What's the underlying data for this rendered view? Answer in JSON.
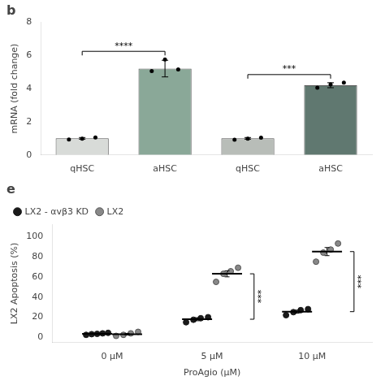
{
  "chart_data": [
    {
      "type": "bar",
      "title": "b",
      "ylabel": "mRNA (fold change)",
      "categories": [
        "qHSC",
        "aHSC",
        "qHSC",
        "aHSC"
      ],
      "values": [
        1.0,
        5.2,
        1.0,
        4.2
      ],
      "errors": [
        0.05,
        0.5,
        0.05,
        0.15
      ],
      "colors": [
        "#d8dbd8",
        "#8aA898",
        "#b8bdb8",
        "#607870"
      ],
      "points": [
        [
          0.93,
          0.98,
          1.05
        ],
        [
          5.05,
          5.75,
          5.15
        ],
        [
          0.92,
          0.98,
          1.04
        ],
        [
          4.05,
          4.25,
          4.35
        ]
      ],
      "ylim": [
        0,
        8
      ],
      "yticks": [
        0,
        2,
        4,
        6,
        8
      ],
      "grid": false,
      "annotations": [
        {
          "text": "****",
          "between": [
            0,
            1
          ]
        },
        {
          "text": "***",
          "between": [
            2,
            3
          ]
        }
      ]
    },
    {
      "type": "scatter",
      "title": "e",
      "xlabel": "ProAgio (μM)",
      "ylabel": "LX2 Apoptosis (%)",
      "categories": [
        "0 μM",
        "5 μM",
        "10 μM"
      ],
      "series": [
        {
          "name": "LX2 - αvβ3 KD",
          "color": "#1a1a1a",
          "values": [
            [
              2.5,
              3.2,
              3.5,
              4.0,
              4.5
            ],
            [
              15.0,
              17.5,
              19.0,
              20.0
            ],
            [
              22.0,
              25.0,
              27.0,
              28.0
            ]
          ],
          "means": [
            3.5,
            18.0,
            25.5
          ],
          "errors": [
            0.5,
            1.5,
            1.5
          ]
        },
        {
          "name": "LX2",
          "color": "#888888",
          "values": [
            [
              1.5,
              2.5,
              4.0,
              5.5
            ],
            [
              55.0,
              63.0,
              65.5,
              69.0
            ],
            [
              75.0,
              84.0,
              87.0,
              93.0
            ]
          ],
          "means": [
            3.2,
            63.0,
            85.0
          ],
          "errors": [
            0.8,
            3.0,
            4.0
          ]
        }
      ],
      "ylim": [
        -5,
        112
      ],
      "yticks": [
        0,
        20,
        40,
        60,
        80,
        100
      ],
      "grid": false,
      "legend": "upper left",
      "annotations": [
        {
          "text": "***",
          "category": "5 μM"
        },
        {
          "text": "***",
          "category": "10 μM"
        }
      ]
    }
  ]
}
